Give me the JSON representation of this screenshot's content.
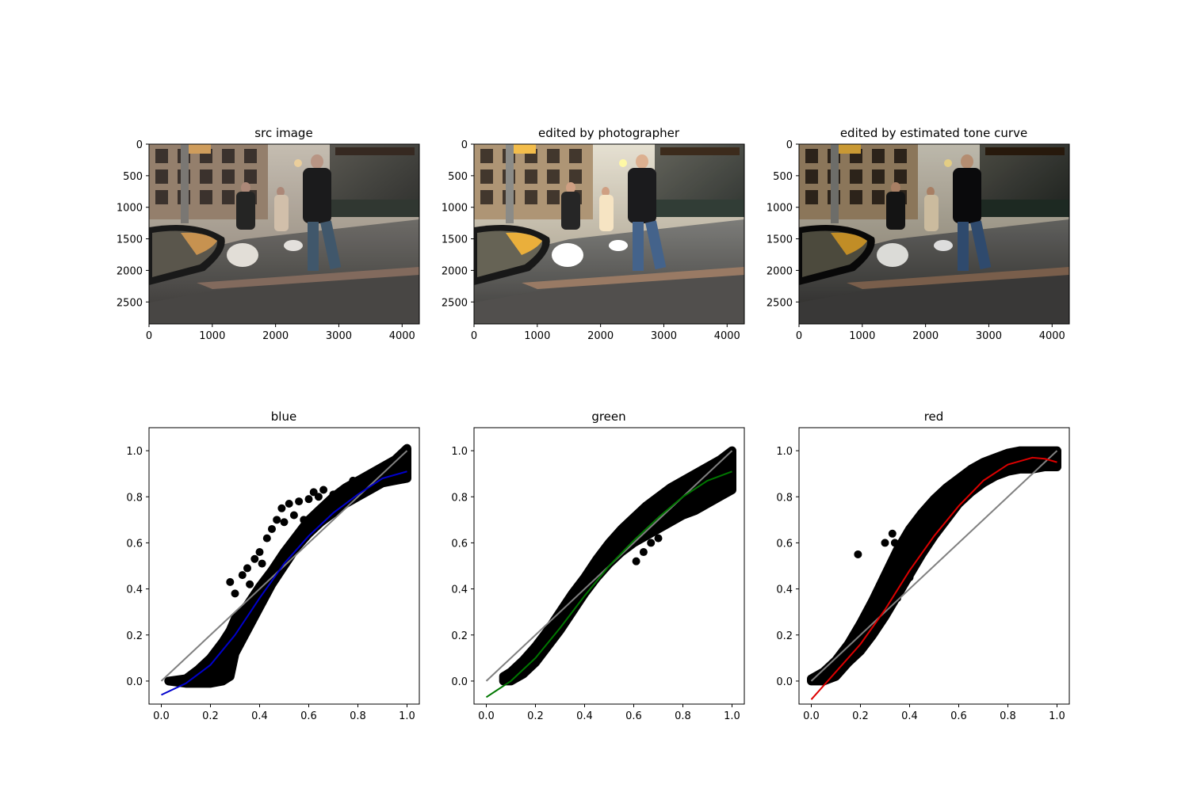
{
  "figure": {
    "image_panels": [
      {
        "title": "src image",
        "tone": "src",
        "xlim": [
          0,
          4272
        ],
        "ylim": [
          2848,
          0
        ],
        "xticks": [
          0,
          1000,
          2000,
          3000,
          4000
        ],
        "yticks": [
          0,
          500,
          1000,
          1500,
          2000,
          2500
        ]
      },
      {
        "title": "edited by photographer",
        "tone": "photographer",
        "xlim": [
          0,
          4272
        ],
        "ylim": [
          2848,
          0
        ],
        "xticks": [
          0,
          1000,
          2000,
          3000,
          4000
        ],
        "yticks": [
          0,
          500,
          1000,
          1500,
          2000,
          2500
        ]
      },
      {
        "title": "edited by estimated tone curve",
        "tone": "curve",
        "xlim": [
          0,
          4272
        ],
        "ylim": [
          2848,
          0
        ],
        "xticks": [
          0,
          1000,
          2000,
          3000,
          4000
        ],
        "yticks": [
          0,
          500,
          1000,
          1500,
          2000,
          2500
        ]
      }
    ]
  },
  "chart_data": [
    {
      "type": "scatter",
      "title": "blue",
      "xlim": [
        -0.05,
        1.05
      ],
      "ylim": [
        -0.1,
        1.1
      ],
      "xticks": [
        "0.0",
        "0.2",
        "0.4",
        "0.6",
        "0.8",
        "1.0"
      ],
      "yticks": [
        "0.0",
        "0.2",
        "0.4",
        "0.6",
        "0.8",
        "1.0"
      ],
      "fit_color": "#0000cc",
      "identity_color": "#808080",
      "scatter_color": "#000000",
      "fit_curve": {
        "x": [
          0.0,
          0.1,
          0.2,
          0.3,
          0.4,
          0.5,
          0.6,
          0.7,
          0.8,
          0.9,
          1.0
        ],
        "y": [
          -0.06,
          -0.01,
          0.07,
          0.2,
          0.36,
          0.51,
          0.63,
          0.73,
          0.81,
          0.88,
          0.91
        ]
      },
      "identity_line": {
        "x": [
          0.0,
          1.0
        ],
        "y": [
          0.0,
          1.0
        ]
      },
      "scatter_band": {
        "x": [
          0.03,
          0.1,
          0.15,
          0.2,
          0.25,
          0.28,
          0.3,
          0.35,
          0.4,
          0.45,
          0.5,
          0.55,
          0.6,
          0.65,
          0.7,
          0.75,
          0.8,
          0.85,
          0.9,
          0.95,
          1.0
        ],
        "y_low": [
          0.0,
          -0.01,
          -0.01,
          -0.01,
          0.0,
          0.02,
          0.12,
          0.22,
          0.32,
          0.42,
          0.5,
          0.58,
          0.64,
          0.69,
          0.73,
          0.77,
          0.8,
          0.83,
          0.86,
          0.87,
          0.88
        ],
        "y_high": [
          0.0,
          0.01,
          0.05,
          0.1,
          0.17,
          0.22,
          0.27,
          0.33,
          0.41,
          0.48,
          0.56,
          0.63,
          0.7,
          0.75,
          0.8,
          0.84,
          0.87,
          0.9,
          0.93,
          0.96,
          1.01
        ]
      },
      "outliers": {
        "x": [
          0.28,
          0.3,
          0.33,
          0.35,
          0.36,
          0.38,
          0.4,
          0.41,
          0.43,
          0.45,
          0.47,
          0.49,
          0.5,
          0.52,
          0.54,
          0.56,
          0.58,
          0.6,
          0.62,
          0.64,
          0.66,
          0.68,
          0.7,
          0.78
        ],
        "y": [
          0.43,
          0.38,
          0.46,
          0.49,
          0.42,
          0.53,
          0.56,
          0.51,
          0.62,
          0.66,
          0.7,
          0.75,
          0.69,
          0.77,
          0.72,
          0.78,
          0.7,
          0.79,
          0.82,
          0.8,
          0.83,
          0.78,
          0.81,
          0.87
        ]
      }
    },
    {
      "type": "scatter",
      "title": "green",
      "xlim": [
        -0.05,
        1.05
      ],
      "ylim": [
        -0.1,
        1.1
      ],
      "xticks": [
        "0.0",
        "0.2",
        "0.4",
        "0.6",
        "0.8",
        "1.0"
      ],
      "yticks": [
        "0.0",
        "0.2",
        "0.4",
        "0.6",
        "0.8",
        "1.0"
      ],
      "fit_color": "#007700",
      "identity_color": "#808080",
      "scatter_color": "#000000",
      "fit_curve": {
        "x": [
          0.0,
          0.1,
          0.2,
          0.3,
          0.4,
          0.5,
          0.6,
          0.7,
          0.8,
          0.9,
          1.0
        ],
        "y": [
          -0.07,
          0.0,
          0.1,
          0.23,
          0.37,
          0.5,
          0.61,
          0.71,
          0.8,
          0.87,
          0.91
        ]
      },
      "identity_line": {
        "x": [
          0.0,
          1.0
        ],
        "y": [
          0.0,
          1.0
        ]
      },
      "scatter_band": {
        "x": [
          0.07,
          0.1,
          0.15,
          0.2,
          0.25,
          0.3,
          0.35,
          0.4,
          0.45,
          0.5,
          0.55,
          0.6,
          0.65,
          0.7,
          0.75,
          0.8,
          0.85,
          0.9,
          0.95,
          1.0
        ],
        "y_low": [
          0.0,
          0.0,
          0.03,
          0.08,
          0.15,
          0.22,
          0.3,
          0.38,
          0.45,
          0.51,
          0.56,
          0.6,
          0.63,
          0.66,
          0.69,
          0.72,
          0.74,
          0.77,
          0.8,
          0.83
        ],
        "y_high": [
          0.02,
          0.04,
          0.09,
          0.15,
          0.22,
          0.3,
          0.38,
          0.45,
          0.53,
          0.6,
          0.66,
          0.71,
          0.76,
          0.8,
          0.84,
          0.87,
          0.9,
          0.93,
          0.96,
          1.0
        ]
      },
      "outliers": {
        "x": [
          0.61,
          0.64,
          0.67,
          0.7,
          0.72,
          0.76,
          0.8,
          0.84,
          0.88,
          0.9
        ],
        "y": [
          0.52,
          0.56,
          0.6,
          0.62,
          0.7,
          0.73,
          0.78,
          0.82,
          0.89,
          0.9
        ]
      }
    },
    {
      "type": "scatter",
      "title": "red",
      "xlim": [
        -0.05,
        1.05
      ],
      "ylim": [
        -0.1,
        1.1
      ],
      "xticks": [
        "0.0",
        "0.2",
        "0.4",
        "0.6",
        "0.8",
        "1.0"
      ],
      "yticks": [
        "0.0",
        "0.2",
        "0.4",
        "0.6",
        "0.8",
        "1.0"
      ],
      "fit_color": "#dd0000",
      "identity_color": "#808080",
      "scatter_color": "#000000",
      "fit_curve": {
        "x": [
          0.0,
          0.1,
          0.2,
          0.3,
          0.4,
          0.5,
          0.6,
          0.7,
          0.8,
          0.9,
          0.95,
          1.0
        ],
        "y": [
          -0.08,
          0.04,
          0.16,
          0.31,
          0.48,
          0.63,
          0.76,
          0.87,
          0.94,
          0.97,
          0.965,
          0.95
        ]
      },
      "identity_line": {
        "x": [
          0.0,
          1.0
        ],
        "y": [
          0.0,
          1.0
        ]
      },
      "scatter_band": {
        "x": [
          0.0,
          0.05,
          0.1,
          0.15,
          0.2,
          0.25,
          0.3,
          0.35,
          0.4,
          0.45,
          0.5,
          0.55,
          0.6,
          0.65,
          0.7,
          0.75,
          0.8,
          0.85,
          0.9,
          0.95,
          1.0
        ],
        "y_low": [
          0.0,
          0.0,
          0.02,
          0.08,
          0.13,
          0.2,
          0.28,
          0.37,
          0.46,
          0.55,
          0.63,
          0.7,
          0.77,
          0.82,
          0.86,
          0.89,
          0.91,
          0.92,
          0.92,
          0.93,
          0.93
        ],
        "y_high": [
          0.01,
          0.04,
          0.09,
          0.16,
          0.25,
          0.35,
          0.46,
          0.57,
          0.66,
          0.73,
          0.79,
          0.84,
          0.88,
          0.92,
          0.95,
          0.97,
          0.99,
          1.0,
          1.0,
          1.0,
          1.0
        ]
      },
      "outliers": {
        "x": [
          0.19,
          0.3,
          0.33,
          0.34,
          0.32,
          0.35,
          0.37,
          0.25,
          0.4,
          0.42
        ],
        "y": [
          0.55,
          0.6,
          0.64,
          0.6,
          0.38,
          0.36,
          0.41,
          0.32,
          0.45,
          0.5
        ]
      }
    }
  ]
}
